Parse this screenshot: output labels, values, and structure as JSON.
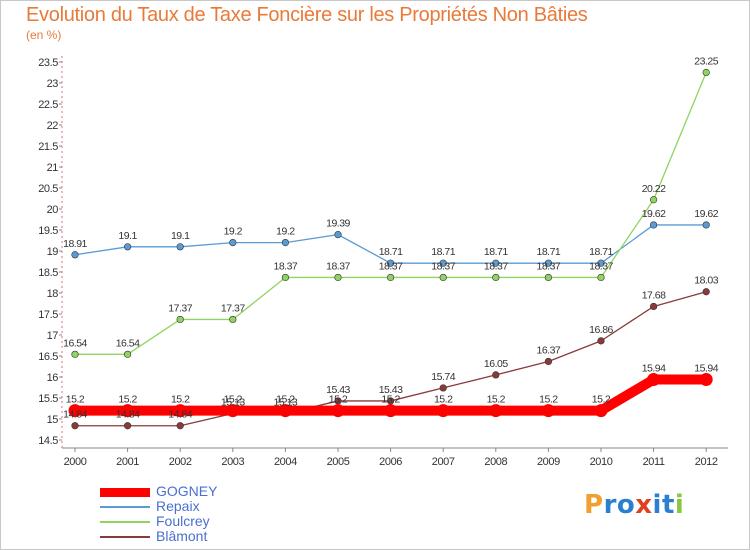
{
  "title": "Evolution du Taux de Taxe Foncière sur les Propriétés Non Bâties",
  "subtitle": "(en %)",
  "logo": {
    "text": "Proxiti",
    "letters": [
      "P",
      "r",
      "o",
      "x",
      "i",
      "t",
      "i"
    ],
    "colors": [
      "#f0a030",
      "#2a7fd0",
      "#2a7fd0",
      "#e04020",
      "#2a7fd0",
      "#2a7fd0",
      "#8cc63f"
    ]
  },
  "chart_data": {
    "type": "line",
    "title": "Evolution du Taux de Taxe Foncière sur les Propriétés Non Bâties",
    "ylabel": "(en %)",
    "xlabel": "",
    "ylim": [
      14.5,
      23.5
    ],
    "ytick_step": 0.5,
    "grid": false,
    "legend_position": "bottom-left",
    "categories": [
      "2000",
      "2001",
      "2002",
      "2003",
      "2004",
      "2005",
      "2006",
      "2007",
      "2008",
      "2009",
      "2010",
      "2011",
      "2012"
    ],
    "yticks": [
      "14.5",
      "15",
      "15.5",
      "16",
      "16.5",
      "17",
      "17.5",
      "18",
      "18.5",
      "19",
      "19.5",
      "20",
      "20.5",
      "21",
      "21.5",
      "22",
      "22.5",
      "23",
      "23.5"
    ],
    "series": [
      {
        "name": "GOGNEY",
        "color": "#ff0000",
        "bold": true,
        "values": [
          15.2,
          15.2,
          15.2,
          15.2,
          15.2,
          15.2,
          15.2,
          15.2,
          15.2,
          15.2,
          15.2,
          15.94,
          15.94
        ],
        "labels": [
          "15.2",
          "15.2",
          "15.2",
          "15.2",
          "15.2",
          "15.2",
          "15.2",
          "15.2",
          "15.2",
          "15.2",
          "15.2",
          "15.94",
          "15.94"
        ]
      },
      {
        "name": "Repaix",
        "color": "#5b9bd5",
        "values": [
          18.91,
          19.1,
          19.1,
          19.2,
          19.2,
          19.39,
          18.71,
          18.71,
          18.71,
          18.71,
          18.71,
          19.62,
          19.62
        ],
        "labels": [
          "18.91",
          "19.1",
          "19.1",
          "19.2",
          "19.2",
          "19.39",
          "18.71",
          "18.71",
          "18.71",
          "18.71",
          "18.71",
          "19.62",
          "19.62"
        ]
      },
      {
        "name": "Foulcrey",
        "color": "#8fd460",
        "values": [
          16.54,
          16.54,
          17.37,
          17.37,
          18.37,
          18.37,
          18.37,
          18.37,
          18.37,
          18.37,
          18.37,
          20.22,
          23.25
        ],
        "labels": [
          "16.54",
          "16.54",
          "17.37",
          "17.37",
          "18.37",
          "18.37",
          "18.37",
          "18.37",
          "18.37",
          "18.37",
          "18.37",
          "20.22",
          "23.25"
        ]
      },
      {
        "name": "Blâmont",
        "color": "#8b3a3a",
        "values": [
          14.84,
          14.84,
          14.84,
          15.13,
          15.13,
          15.43,
          15.43,
          15.74,
          16.05,
          16.37,
          16.86,
          17.68,
          18.03
        ],
        "labels": [
          "14.84",
          "14.84",
          "14.84",
          "15.13",
          "15.13",
          "15.43",
          "15.43",
          "15.74",
          "16.05",
          "16.37",
          "16.86",
          "17.68",
          "18.03"
        ]
      }
    ]
  }
}
